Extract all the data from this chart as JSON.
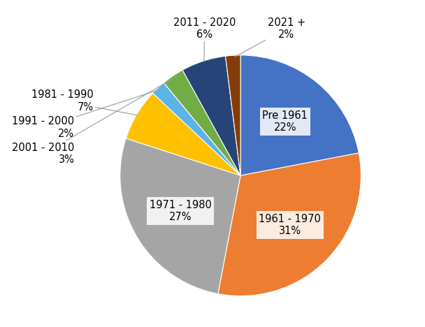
{
  "labels": [
    "Pre 1961",
    "1961 - 1970",
    "1971 - 1980",
    "1981 - 1990",
    "1991 - 2000",
    "2001 - 2010",
    "2011 - 2020",
    "2021 +"
  ],
  "values": [
    22,
    31,
    27,
    7,
    2,
    3,
    6,
    2
  ],
  "colors": [
    "#4472C4",
    "#ED7D31",
    "#A5A5A5",
    "#FFC000",
    "#5BB4E5",
    "#70AD47",
    "#264478",
    "#843C0C"
  ],
  "startangle": 90,
  "background_color": "#ffffff",
  "label_fontsize": 10.5,
  "inside_label_fontsize": 10.5,
  "figsize": [
    6.08,
    4.68
  ],
  "dpi": 100
}
